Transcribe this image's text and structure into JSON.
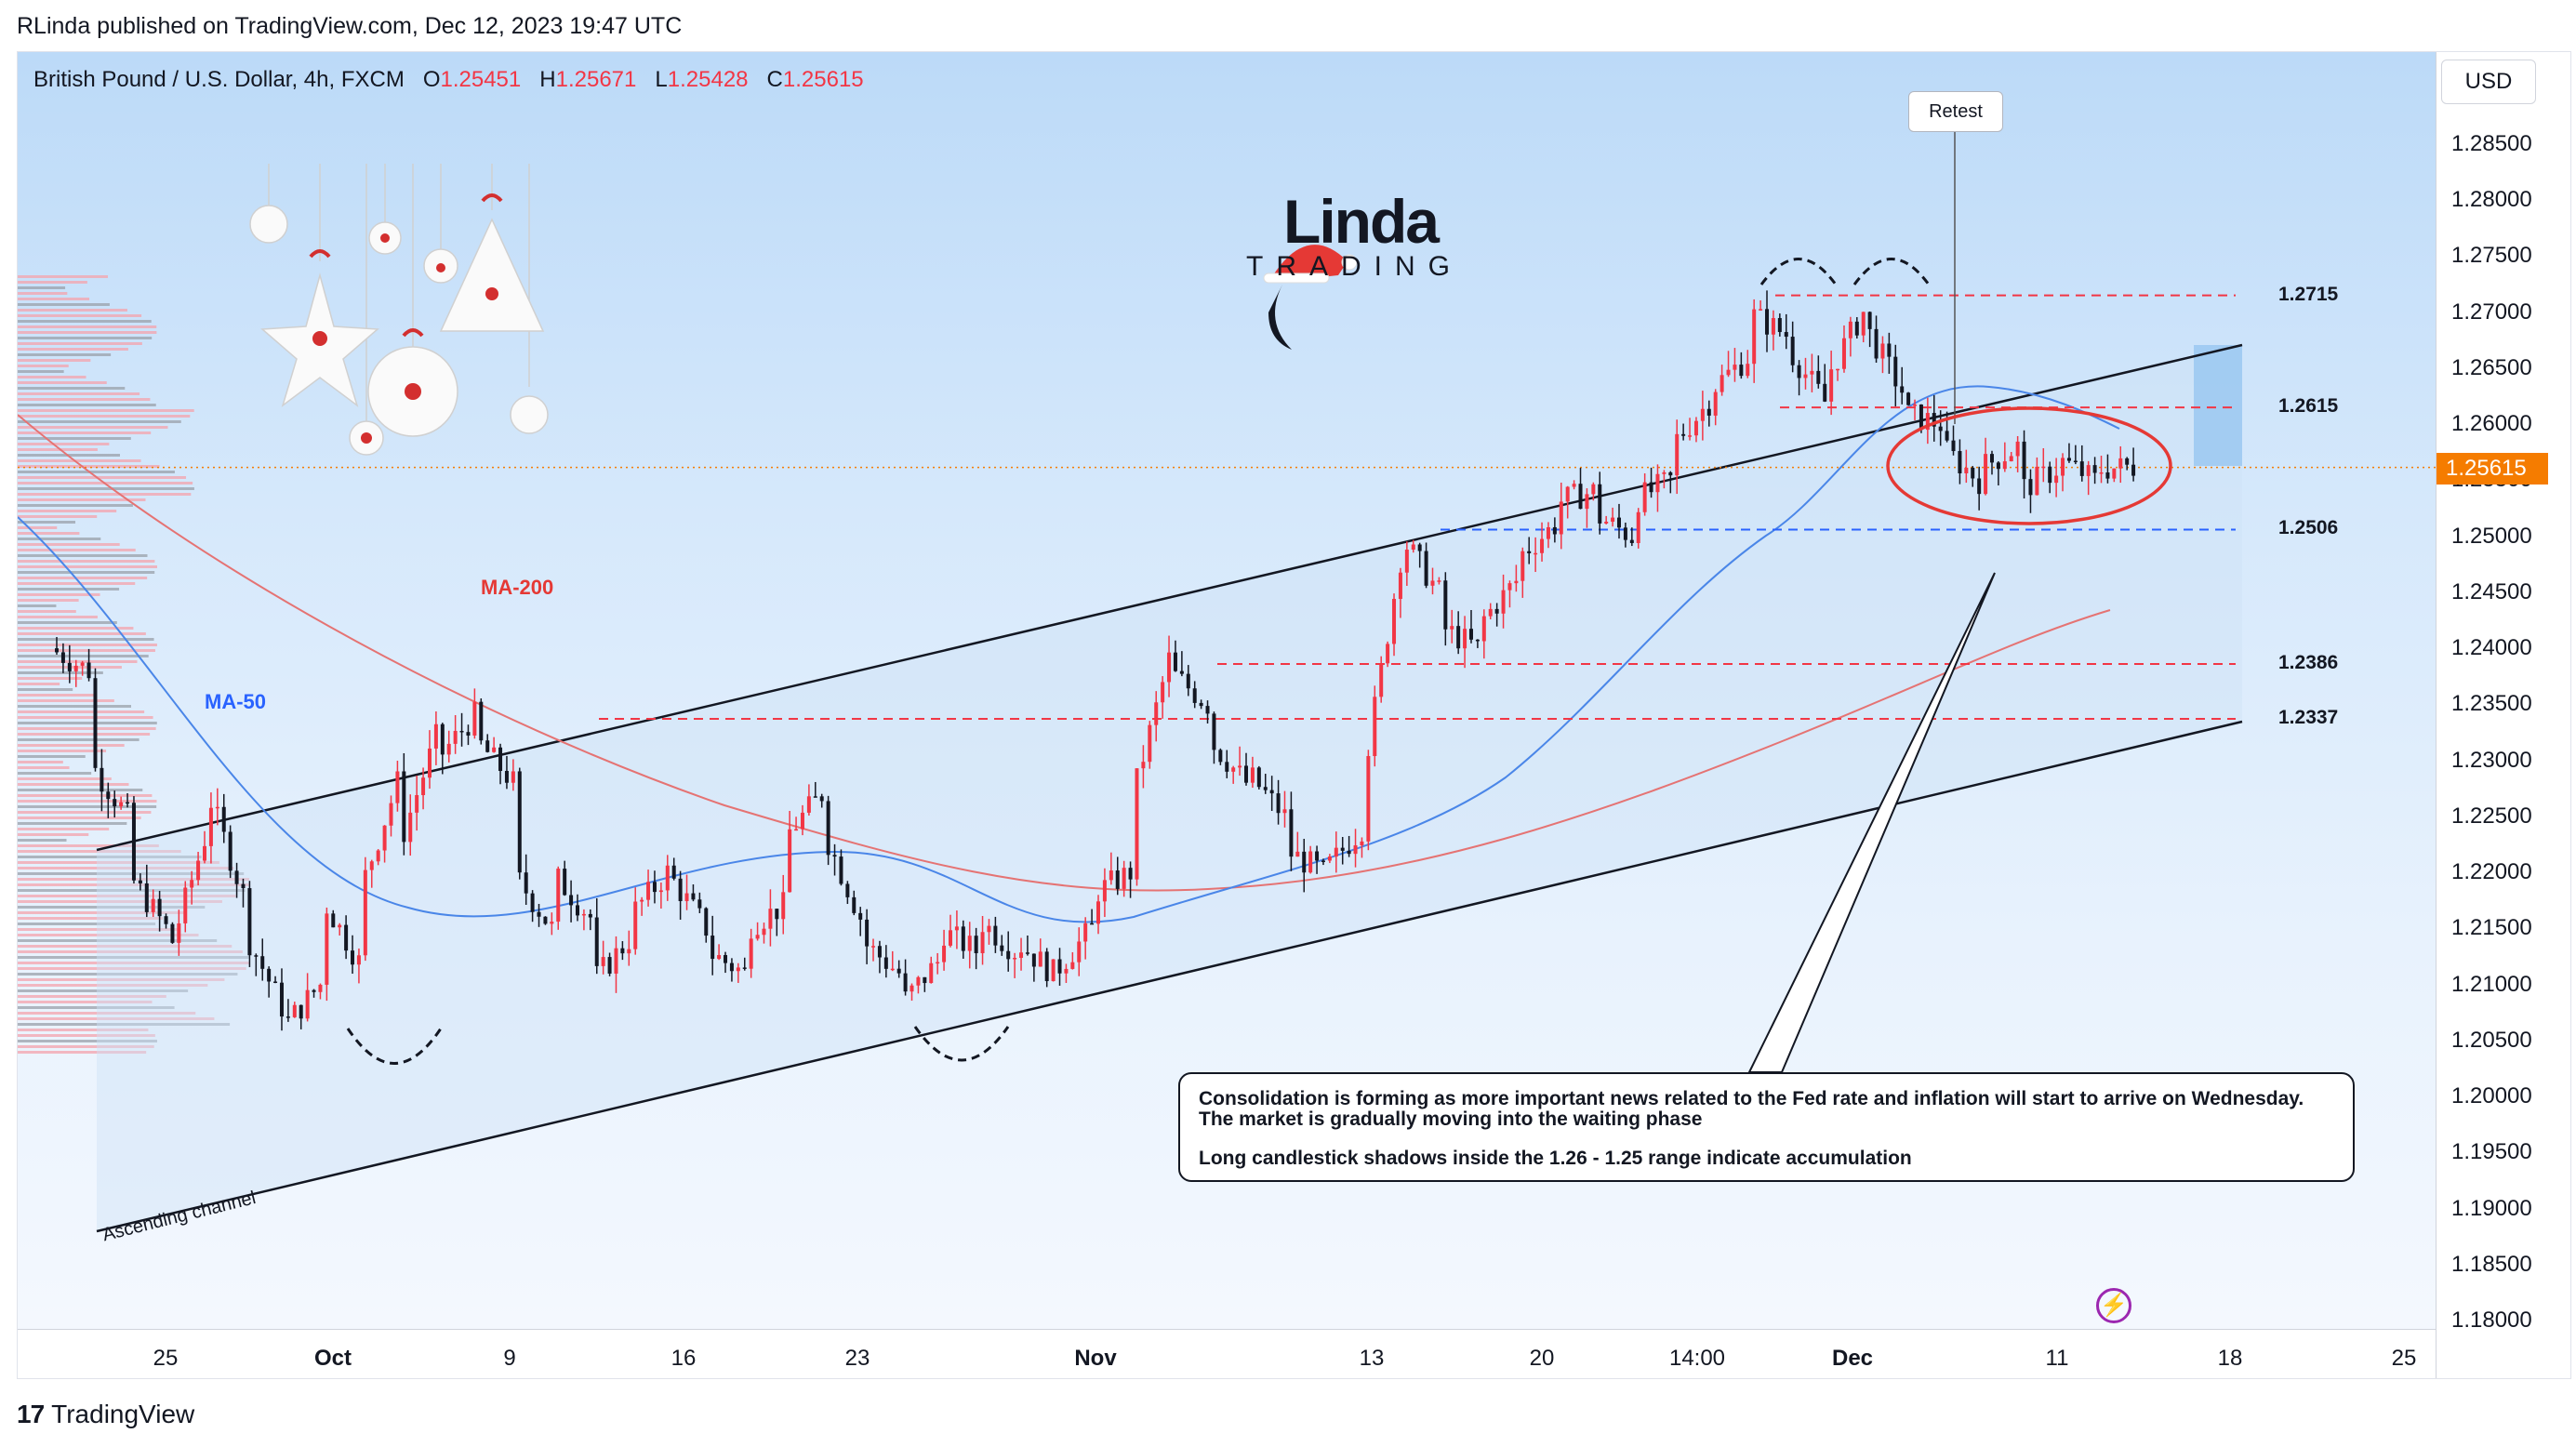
{
  "header": {
    "published_line": "RLinda published on TradingView.com, Dec 12, 2023 19:47 UTC"
  },
  "legend": {
    "symbol": "British Pound / U.S. Dollar, 4h, FXCM",
    "o_key": "O",
    "o_val": "1.25451",
    "h_key": "H",
    "h_val": "1.25671",
    "l_key": "L",
    "l_val": "1.25428",
    "c_key": "C",
    "c_val": "1.25615"
  },
  "currency_button": "USD",
  "price_badge": "1.25615",
  "footer": {
    "brand": "TradingView"
  },
  "logo": {
    "title": "Linda",
    "subtitle": "TRADING"
  },
  "annotations": {
    "retest": "Retest",
    "note_line1": "Consolidation is forming as more important news related to the Fed rate and inflation will start to arrive on Wednesday.",
    "note_line2": "The market is gradually moving into the waiting phase",
    "note_line3": "Long candlestick shadows inside the 1.26 - 1.25 range indicate accumulation",
    "ma200": "MA-200",
    "ma50": "MA-50",
    "channel": "Ascending channel"
  },
  "colors": {
    "bull": "#f23645",
    "bear": "#131722",
    "ma50": "#4a86e8",
    "ma200": "#e57373",
    "level": "#f23645",
    "support": "#2962ff",
    "accent": "#f57c00"
  },
  "chart_data": {
    "type": "candlestick",
    "symbol": "GBPUSD",
    "timeframe": "4h",
    "ylim": [
      1.18,
      1.291
    ],
    "y_ticks": [
      "1.28500",
      "1.28000",
      "1.27500",
      "1.27000",
      "1.26500",
      "1.26000",
      "1.25500",
      "1.25000",
      "1.24500",
      "1.24000",
      "1.23500",
      "1.23000",
      "1.22500",
      "1.22000",
      "1.21500",
      "1.21000",
      "1.20500",
      "1.20000",
      "1.19500",
      "1.19000",
      "1.18500",
      "1.18000"
    ],
    "x_ticks": [
      "25",
      "Oct",
      "9",
      "16",
      "23",
      "Nov",
      "13",
      "20",
      "14:00",
      "Dec",
      "11",
      "18",
      "25"
    ],
    "x_ticks_bold": [
      false,
      true,
      false,
      false,
      false,
      true,
      false,
      false,
      false,
      true,
      false,
      false,
      false
    ],
    "levels": [
      {
        "label": "1.2715",
        "value": 1.2715,
        "color": "red"
      },
      {
        "label": "1.2615",
        "value": 1.2615,
        "color": "red"
      },
      {
        "label": "1.2506",
        "value": 1.2506,
        "color": "blue"
      },
      {
        "label": "1.2386",
        "value": 1.2386,
        "color": "red"
      },
      {
        "label": "1.2337",
        "value": 1.2337,
        "color": "red"
      }
    ],
    "last_price": 1.25615,
    "price_path": [
      [
        1.24,
        1.238
      ],
      [
        1.23,
        1.225
      ],
      [
        1.22,
        1.215
      ],
      [
        1.212,
        1.223
      ],
      [
        1.228,
        1.218
      ],
      [
        1.215,
        1.208
      ],
      [
        1.206,
        1.21
      ],
      [
        1.218,
        1.212
      ],
      [
        1.218,
        1.228
      ],
      [
        1.222,
        1.232
      ],
      [
        1.23,
        1.234
      ],
      [
        1.232,
        1.228
      ],
      [
        1.22,
        1.215
      ],
      [
        1.22,
        1.216
      ],
      [
        1.21,
        1.214
      ],
      [
        1.216,
        1.22
      ],
      [
        1.22,
        1.215
      ],
      [
        1.213,
        1.211
      ],
      [
        1.215,
        1.217
      ],
      [
        1.223,
        1.227
      ],
      [
        1.224,
        1.216
      ],
      [
        1.214,
        1.211
      ],
      [
        1.208,
        1.212
      ],
      [
        1.215,
        1.213
      ],
      [
        1.216,
        1.213
      ],
      [
        1.214,
        1.211
      ],
      [
        1.211,
        1.215
      ],
      [
        1.218,
        1.22
      ],
      [
        1.226,
        1.239
      ],
      [
        1.238,
        1.235
      ],
      [
        1.232,
        1.228
      ],
      [
        1.229,
        1.225
      ],
      [
        1.222,
        1.22
      ],
      [
        1.22,
        1.224
      ],
      [
        1.228,
        1.248
      ],
      [
        1.25,
        1.245
      ],
      [
        1.242,
        1.24
      ],
      [
        1.242,
        1.246
      ],
      [
        1.248,
        1.251
      ],
      [
        1.253,
        1.254
      ],
      [
        1.252,
        1.25
      ],
      [
        1.253,
        1.255
      ],
      [
        1.258,
        1.262
      ],
      [
        1.263,
        1.266
      ],
      [
        1.27,
        1.268
      ],
      [
        1.267,
        1.262
      ],
      [
        1.264,
        1.27
      ],
      [
        1.269,
        1.263
      ],
      [
        1.261,
        1.26
      ],
      [
        1.258,
        1.255
      ],
      [
        1.256,
        1.258
      ],
      [
        1.254,
        1.256
      ],
      [
        1.257,
        1.255
      ],
      [
        1.256,
        1.2562
      ]
    ]
  }
}
